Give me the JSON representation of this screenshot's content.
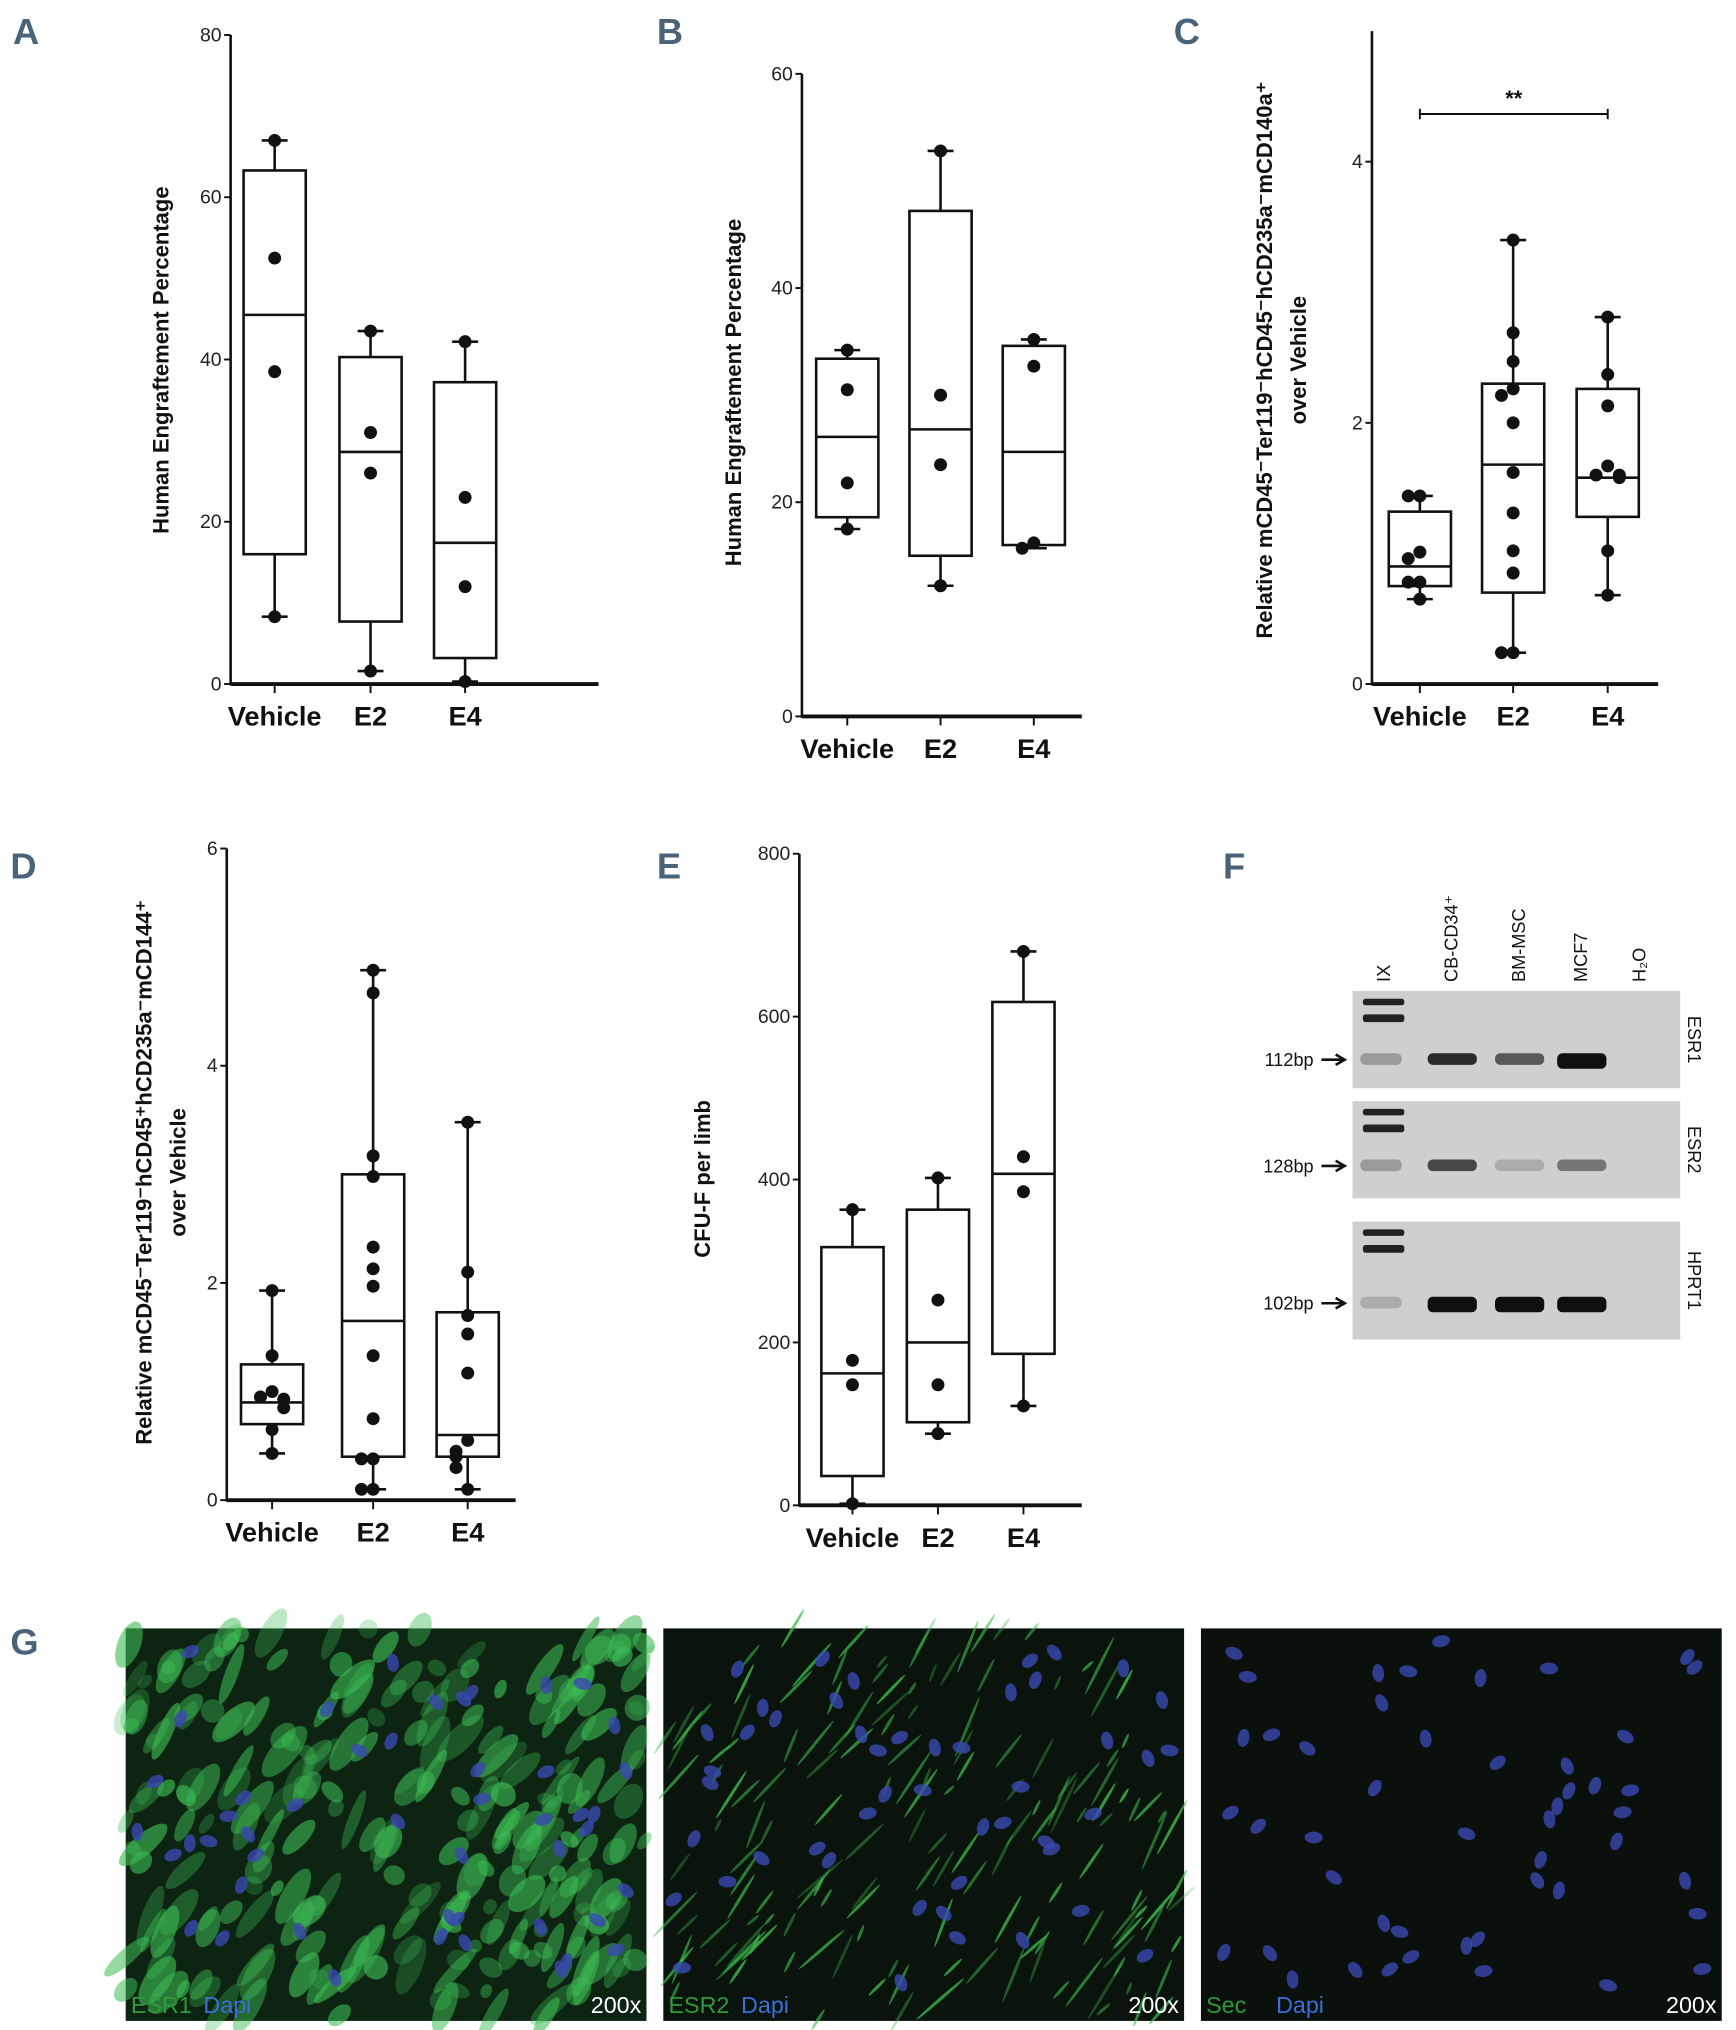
{
  "panels": [
    "A",
    "B",
    "C",
    "D",
    "E",
    "F",
    "G"
  ],
  "chart_data": [
    {
      "panel": "A",
      "type": "box",
      "categories": [
        "Vehicle",
        "E2",
        "E4"
      ],
      "ylabel": [
        "Human Engraftement Percentage"
      ],
      "ylim": [
        0,
        80
      ],
      "yticks": [
        0,
        20,
        40,
        60,
        80
      ],
      "boxes": [
        {
          "min": 8.3,
          "q1": 16,
          "median": 45.5,
          "q3": 63.3,
          "max": 67,
          "points": [
            67,
            52.5,
            38.5,
            8.3
          ]
        },
        {
          "min": 1.6,
          "q1": 7.7,
          "median": 28.6,
          "q3": 40.3,
          "max": 43.5,
          "points": [
            43.5,
            31,
            26,
            1.6
          ]
        },
        {
          "min": 0.3,
          "q1": 3.2,
          "median": 17.4,
          "q3": 37.2,
          "max": 42.2,
          "points": [
            42.2,
            23,
            12,
            0.3
          ]
        }
      ]
    },
    {
      "panel": "B",
      "type": "box",
      "categories": [
        "Vehicle",
        "E2",
        "E4"
      ],
      "ylabel": [
        "Human Engraftement Percentage"
      ],
      "ylim": [
        0,
        60
      ],
      "yticks": [
        0,
        20,
        40,
        60
      ],
      "boxes": [
        {
          "min": 17.5,
          "q1": 18.6,
          "median": 26.1,
          "q3": 33.4,
          "max": 34.2,
          "points": [
            34.2,
            30.5,
            21.8,
            17.5
          ]
        },
        {
          "min": 12.2,
          "q1": 15,
          "median": 26.8,
          "q3": 47.2,
          "max": 52.8,
          "points": [
            52.8,
            30,
            23.5,
            12.2
          ]
        },
        {
          "min": 15.7,
          "q1": 16,
          "median": 24.7,
          "q3": 34.6,
          "max": 35.2,
          "points": [
            35.2,
            32.7,
            16.2,
            15.7
          ]
        }
      ]
    },
    {
      "panel": "C",
      "type": "box",
      "categories": [
        "Vehicle",
        "E2",
        "E4"
      ],
      "ylabel": [
        "Relative mCD45⁻Ter119⁻hCD45⁻hCD235a⁻mCD140a⁺",
        "over Vehicle"
      ],
      "ylim": [
        0,
        5
      ],
      "yticks": [
        0,
        2,
        4
      ],
      "significance": {
        "from": "Vehicle",
        "to": "E4",
        "label": "**",
        "y": 4.4
      },
      "boxes": [
        {
          "min": 0.65,
          "q1": 0.75,
          "median": 0.9,
          "q3": 1.32,
          "max": 1.44,
          "points": [
            1.44,
            1.44,
            1.01,
            0.96,
            0.78,
            0.78,
            0.65
          ]
        },
        {
          "min": 0.24,
          "q1": 0.7,
          "median": 1.68,
          "q3": 2.3,
          "max": 3.4,
          "points": [
            3.4,
            2.69,
            2.47,
            2.26,
            2.21,
            2.0,
            1.62,
            1.31,
            1.02,
            0.85,
            0.24,
            0.24
          ]
        },
        {
          "min": 0.68,
          "q1": 1.28,
          "median": 1.58,
          "q3": 2.26,
          "max": 2.81,
          "points": [
            2.81,
            2.37,
            2.13,
            1.67,
            1.6,
            1.6,
            1.58,
            1.02,
            0.68
          ]
        }
      ]
    },
    {
      "panel": "D",
      "type": "box",
      "categories": [
        "Vehicle",
        "E2",
        "E4"
      ],
      "ylabel": [
        "Relative mCD45⁻Ter119⁻hCD45⁺hCD235a⁻mCD144⁺",
        "over Vehicle"
      ],
      "ylim": [
        0,
        6
      ],
      "yticks": [
        0,
        2,
        4,
        6
      ],
      "boxes": [
        {
          "min": 0.43,
          "q1": 0.7,
          "median": 0.9,
          "q3": 1.25,
          "max": 1.93,
          "points": [
            1.93,
            1.33,
            1.0,
            0.95,
            0.93,
            0.85,
            0.65,
            0.43
          ]
        },
        {
          "min": 0.1,
          "q1": 0.4,
          "median": 1.65,
          "q3": 3.0,
          "max": 4.88,
          "points": [
            4.88,
            4.67,
            3.17,
            2.98,
            2.33,
            2.13,
            1.97,
            1.33,
            0.75,
            0.38,
            0.38,
            0.1,
            0.1
          ]
        },
        {
          "min": 0.1,
          "q1": 0.4,
          "median": 0.6,
          "q3": 1.73,
          "max": 3.48,
          "points": [
            3.48,
            2.1,
            1.7,
            1.53,
            1.17,
            0.55,
            0.45,
            0.4,
            0.3,
            0.1
          ]
        }
      ]
    },
    {
      "panel": "E",
      "type": "box",
      "categories": [
        "Vehicle",
        "E2",
        "E4"
      ],
      "ylabel": [
        "CFU-F per limb"
      ],
      "ylim": [
        0,
        800
      ],
      "yticks": [
        0,
        200,
        400,
        600,
        800
      ],
      "boxes": [
        {
          "min": 2,
          "q1": 36,
          "median": 162,
          "q3": 317,
          "max": 363,
          "points": [
            363,
            178,
            148,
            2
          ]
        },
        {
          "min": 88,
          "q1": 102,
          "median": 200,
          "q3": 363,
          "max": 402,
          "points": [
            402,
            252,
            148,
            88
          ]
        },
        {
          "min": 122,
          "q1": 186,
          "median": 407,
          "q3": 618,
          "max": 680,
          "points": [
            680,
            428,
            385,
            122
          ]
        }
      ]
    }
  ],
  "gel": {
    "lanes": [
      "IX",
      "CB-CD34⁺",
      "BM-MSC",
      "MCF7",
      "H₂O"
    ],
    "rows": [
      {
        "gene": "ESR1",
        "size": "112bp",
        "bands": [
          0.25,
          0.85,
          0.6,
          1.0,
          0
        ]
      },
      {
        "gene": "ESR2",
        "size": "128bp",
        "bands": [
          0.25,
          0.7,
          0.15,
          0.45,
          0
        ]
      },
      {
        "gene": "HPRT1",
        "size": "102bp",
        "bands": [
          0.15,
          1.0,
          1.0,
          1.0,
          0
        ]
      }
    ]
  },
  "micrographs": [
    {
      "stain": "ESR1",
      "counter": "Dapi",
      "mag": "200x",
      "signal": "dense"
    },
    {
      "stain": "ESR2",
      "counter": "Dapi",
      "mag": "200x",
      "signal": "sparse"
    },
    {
      "stain": "Sec",
      "counter": "Dapi",
      "mag": "200x",
      "signal": "none"
    }
  ],
  "colors": {
    "panel_letter": "#4a6378",
    "green": "#2e9a3a",
    "blue": "#3a6fd8",
    "nuclei": "#3a48b0"
  }
}
